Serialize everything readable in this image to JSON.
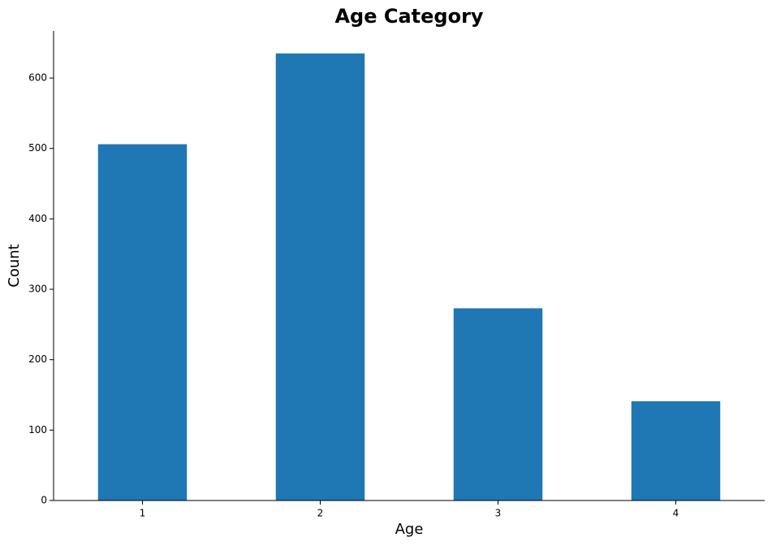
{
  "chart_data": {
    "type": "bar",
    "title": "Age Category",
    "x_label": "Age",
    "y_label": "Count",
    "categories": [
      "1",
      "2",
      "3",
      "4"
    ],
    "values": [
      506,
      635,
      273,
      141
    ],
    "color": "#1f77b4",
    "ylim": [
      0,
      667
    ],
    "yticks": [
      0,
      100,
      200,
      300,
      400,
      500,
      600
    ],
    "grid": false
  }
}
